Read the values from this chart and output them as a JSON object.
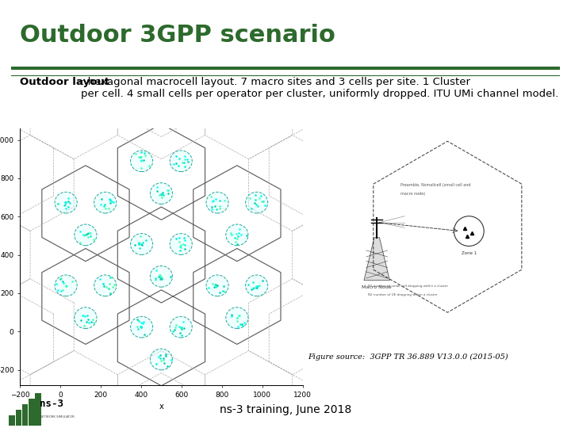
{
  "title": "Outdoor 3GPP scenario",
  "title_color": "#2D6A2D",
  "body_text_bold": "Outdoor layout",
  "body_text_normal": ": hexagonal macrocell layout. 7 macro sites and 3 cells per site. 1 Cluster\nper cell. 4 small cells per operator per cluster, uniformly dropped. ITU UMi channel model.",
  "figure_source": "Figure source:  3GPP TR 36.889 V13.0.0 (2015-05)",
  "footer_text": "ns-3 training, June 2018",
  "separator_color": "#2D6A2D",
  "background_color": "#FFFFFF",
  "hex_edge_color_solid": "#555555",
  "hex_edge_color_dashed": "#888888",
  "cluster_fill": "#00FFFF",
  "cluster_edge": "#009999",
  "dot_color": "#00CCAA",
  "title_fontsize": 22,
  "body_fontsize": 9.5
}
